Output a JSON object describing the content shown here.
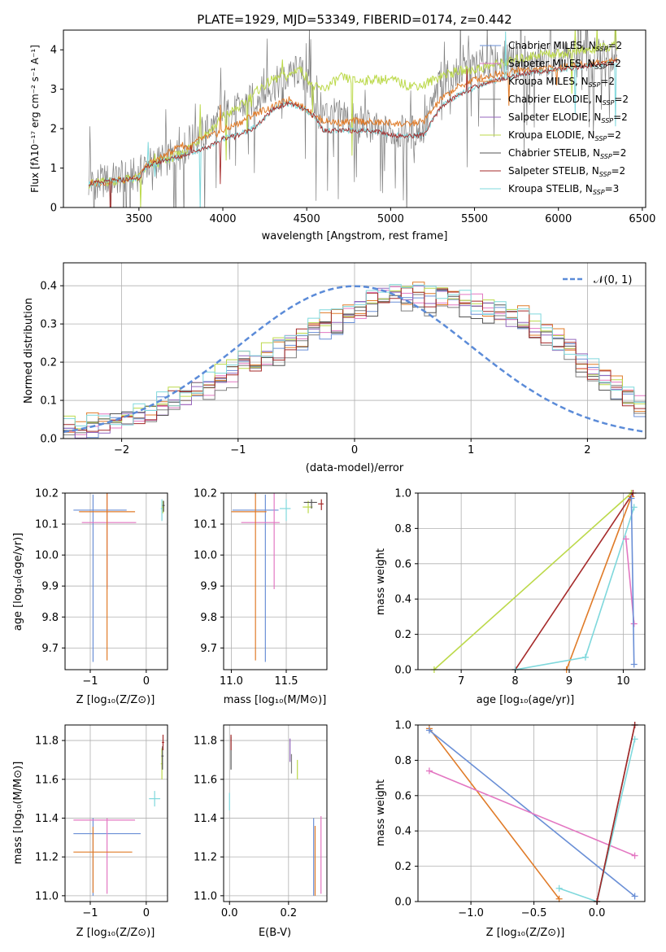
{
  "colors": {
    "chabrier_miles": "#6a8fd6",
    "salpeter_miles": "#e377c2",
    "kroupa_miles": "#e07b28",
    "chabrier_elodie": "#7f7f7f",
    "salpeter_elodie": "#9467bd",
    "kroupa_elodie": "#bcd94a",
    "chabrier_stelib": "#555555",
    "salpeter_stelib": "#a52a2a",
    "kroupa_stelib": "#7fd8dc",
    "grid": "#b0b0b0",
    "normal": "#5b8bd8"
  },
  "chart_data": [
    {
      "type": "line",
      "title": "PLATE=1929, MJD=53349, FIBERID=0174, z=0.442",
      "xlabel": "wavelength [Angstrom, rest frame]",
      "ylabel": "Flux [fλ10⁻¹⁷ erg cm⁻² s⁻¹ A⁻¹]",
      "xlim": [
        3050,
        6520
      ],
      "ylim": [
        0,
        4.5
      ],
      "xticks": [
        "3500",
        "4000",
        "4500",
        "5000",
        "5500",
        "6000",
        "6500"
      ],
      "yticks": [
        "0",
        "1",
        "2",
        "3",
        "4"
      ],
      "legend_position": "top-right",
      "legend": [
        "Chabrier MILES, N_SSP=2",
        "Salpeter MILES, N_SSP=2",
        "Kroupa MILES, N_SSP=2",
        "Chabrier ELODIE, N_SSP=2",
        "Salpeter ELODIE, N_SSP=2",
        "Kroupa ELODIE, N_SSP=2",
        "Chabrier STELIB, N_SSP=2",
        "Salpeter STELIB, N_SSP=2",
        "Kroupa STELIB, N_SSP=3"
      ],
      "data_curve": {
        "x": [
          3200,
          3500,
          3550,
          3650,
          3750,
          3850,
          3950,
          4000,
          4100,
          4200,
          4300,
          4400,
          4450,
          4500,
          4550,
          4600,
          4700,
          4800,
          4900,
          5000,
          5100,
          5200,
          5300,
          5400,
          5500,
          5600,
          5700,
          5800,
          5900,
          6000,
          6100,
          6200,
          6350
        ],
        "y": [
          0.6,
          0.85,
          1.1,
          1.2,
          1.4,
          1.8,
          2.1,
          2.3,
          2.5,
          2.8,
          3.1,
          3.3,
          3.5,
          3.2,
          2.7,
          2.4,
          2.3,
          2.2,
          2.0,
          1.9,
          1.9,
          2.0,
          3.2,
          3.4,
          3.6,
          3.7,
          3.8,
          3.6,
          3.7,
          3.8,
          3.8,
          3.9,
          3.9
        ]
      },
      "model_high": {
        "x": [
          3200,
          3500,
          3550,
          3650,
          3750,
          3850,
          3950,
          4000,
          4100,
          4200,
          4300,
          4400,
          4450,
          4500,
          4550,
          4600,
          4700,
          4800,
          4900,
          5000,
          5100,
          5200,
          5300,
          5400,
          5500,
          5600,
          5700,
          5800,
          5900,
          6000,
          6100,
          6200,
          6350
        ],
        "y": [
          0.6,
          0.75,
          1.05,
          1.2,
          1.35,
          1.7,
          2.05,
          2.3,
          2.55,
          2.95,
          3.25,
          3.35,
          3.55,
          3.3,
          3.05,
          3.0,
          3.3,
          3.2,
          3.25,
          3.25,
          3.1,
          3.1,
          3.35,
          3.45,
          3.5,
          3.6,
          3.7,
          3.8,
          3.9,
          3.9,
          3.95,
          4.0,
          4.1
        ]
      },
      "model_mid": {
        "x": [
          3200,
          3500,
          3550,
          3650,
          3750,
          3850,
          3950,
          4000,
          4100,
          4200,
          4300,
          4400,
          4450,
          4500,
          4550,
          4600,
          4700,
          4800,
          4900,
          5000,
          5100,
          5200,
          5300,
          5400,
          5500,
          5600,
          5700,
          5800,
          5900,
          6000,
          6100,
          6200,
          6350
        ],
        "y": [
          0.6,
          0.75,
          1.05,
          1.2,
          1.3,
          1.45,
          1.6,
          1.75,
          1.85,
          2.05,
          2.5,
          2.65,
          2.55,
          2.45,
          2.3,
          1.95,
          1.95,
          1.95,
          1.95,
          1.85,
          1.8,
          1.85,
          2.55,
          2.85,
          3.05,
          3.2,
          3.3,
          3.4,
          3.45,
          3.5,
          3.55,
          3.6,
          3.7
        ]
      },
      "model_orange": {
        "x": [
          3200,
          3500,
          3550,
          3650,
          3750,
          3800,
          3850,
          3950,
          4000,
          4100,
          4200,
          4300,
          4400,
          4450,
          4500,
          4550,
          4600,
          4700,
          4800,
          4900,
          5000,
          5100,
          5200,
          5300,
          5400,
          5500,
          5600,
          5700,
          5800,
          5900,
          6000,
          6100,
          6200,
          6350
        ],
        "y": [
          0.6,
          0.75,
          1.1,
          1.3,
          1.6,
          1.5,
          1.7,
          1.85,
          1.95,
          2.15,
          2.4,
          2.55,
          2.75,
          2.6,
          2.5,
          2.3,
          2.2,
          2.15,
          2.2,
          2.15,
          2.15,
          2.1,
          2.2,
          2.75,
          3.05,
          3.25,
          3.35,
          3.45,
          3.5,
          3.5,
          3.55,
          3.6,
          3.65,
          3.75
        ]
      }
    },
    {
      "type": "histogram",
      "xlabel": "(data-model)/error",
      "ylabel": "Normed distribution",
      "xlim": [
        -2.5,
        2.5
      ],
      "ylim": [
        0,
        0.46
      ],
      "xticks": [
        "−2",
        "−1",
        "0",
        "1",
        "2"
      ],
      "yticks": [
        "0.0",
        "0.1",
        "0.2",
        "0.3",
        "0.4"
      ],
      "legend_position": "top-right",
      "legend": [
        "𝒩(0, 1)"
      ],
      "bin_edges_start": -2.5,
      "bin_width": 0.1,
      "base_profile": [
        0.02,
        0.025,
        0.03,
        0.035,
        0.045,
        0.05,
        0.06,
        0.075,
        0.09,
        0.1,
        0.11,
        0.13,
        0.14,
        0.16,
        0.17,
        0.19,
        0.2,
        0.22,
        0.23,
        0.25,
        0.26,
        0.28,
        0.3,
        0.31,
        0.33,
        0.34,
        0.36,
        0.37,
        0.38,
        0.37,
        0.38,
        0.36,
        0.37,
        0.36,
        0.35,
        0.35,
        0.34,
        0.33,
        0.32,
        0.31,
        0.29,
        0.28,
        0.25,
        0.23,
        0.2,
        0.18,
        0.15,
        0.13,
        0.11,
        0.09
      ]
    },
    {
      "type": "scatter",
      "panel": "age-vs-Z",
      "xlabel": "Z [log₁₀(Z/Z⊙)]",
      "ylabel": "age  [log₁₀(age/yr)]",
      "xlim": [
        -1.45,
        0.38
      ],
      "ylim": [
        9.63,
        10.2
      ],
      "xticks": [
        "−1",
        "0"
      ],
      "yticks": [
        "9.7",
        "9.8",
        "9.9",
        "10.0",
        "10.1",
        "10.2"
      ],
      "points": [
        {
          "x": -0.95,
          "y": 10.145,
          "xerr": [
            0.35,
            0.6
          ],
          "yerr": [
            0.49,
            0.05
          ],
          "color": "chabrier_miles"
        },
        {
          "x": -0.7,
          "y": 10.105,
          "xerr": [
            0.45,
            0.52
          ],
          "yerr": [
            0.215,
            0.095
          ],
          "color": "salpeter_miles"
        },
        {
          "x": -0.7,
          "y": 10.14,
          "xerr": [
            0.5,
            0.5
          ],
          "yerr": [
            0.48,
            0.06
          ],
          "color": "kroupa_miles"
        },
        {
          "x": 0.28,
          "y": 10.15,
          "xerr": [
            0.02,
            0.02
          ],
          "yerr": [
            0.04,
            0.03
          ],
          "color": "kroupa_stelib"
        },
        {
          "x": 0.3,
          "y": 10.155,
          "xerr": [
            0.02,
            0.02
          ],
          "yerr": [
            0.02,
            0.02
          ],
          "color": "kroupa_elodie"
        },
        {
          "x": 0.31,
          "y": 10.16,
          "xerr": [
            0.02,
            0.02
          ],
          "yerr": [
            0.02,
            0.015
          ],
          "color": "chabrier_stelib"
        }
      ]
    },
    {
      "type": "scatter",
      "panel": "age-vs-mass",
      "xlabel": "mass [log₁₀(M/M⊙)]",
      "ylabel": "",
      "xlim": [
        10.93,
        11.87
      ],
      "ylim": [
        9.63,
        10.2
      ],
      "xticks": [
        "11.0",
        "11.5"
      ],
      "yticks": [
        "9.7",
        "9.8",
        "9.9",
        "10.0",
        "10.1",
        "10.2"
      ],
      "points": [
        {
          "x": 11.31,
          "y": 10.145,
          "xerr": [
            0.3,
            0.12
          ],
          "yerr": [
            0.49,
            0.05
          ],
          "color": "chabrier_miles"
        },
        {
          "x": 11.39,
          "y": 10.105,
          "xerr": [
            0.3,
            0.05
          ],
          "yerr": [
            0.215,
            0.095
          ],
          "color": "salpeter_miles"
        },
        {
          "x": 11.22,
          "y": 10.14,
          "xerr": [
            0.22,
            0.1
          ],
          "yerr": [
            0.48,
            0.06
          ],
          "color": "kroupa_miles"
        },
        {
          "x": 11.5,
          "y": 10.15,
          "xerr": [
            0.06,
            0.04
          ],
          "yerr": [
            0.04,
            0.03
          ],
          "color": "kroupa_stelib"
        },
        {
          "x": 11.7,
          "y": 10.155,
          "xerr": [
            0.05,
            0.04
          ],
          "yerr": [
            0.02,
            0.02
          ],
          "color": "kroupa_elodie"
        },
        {
          "x": 11.73,
          "y": 10.17,
          "xerr": [
            0.07,
            0.05
          ],
          "yerr": [
            0.02,
            0.01
          ],
          "color": "chabrier_stelib"
        },
        {
          "x": 11.82,
          "y": 10.165,
          "xerr": [
            0.03,
            0.02
          ],
          "yerr": [
            0.02,
            0.015
          ],
          "color": "salpeter_stelib"
        }
      ]
    },
    {
      "type": "line",
      "panel": "weight-vs-age",
      "xlabel": "age  [log₁₀(age/yr)]",
      "ylabel": "mass weight",
      "xlim": [
        6.2,
        10.4
      ],
      "ylim": [
        0,
        1.0
      ],
      "xticks": [
        "7",
        "8",
        "9",
        "10"
      ],
      "yticks": [
        "0.0",
        "0.2",
        "0.4",
        "0.6",
        "0.8",
        "1.0"
      ],
      "series": [
        {
          "color": "kroupa_elodie",
          "x": [
            6.5,
            10.15
          ],
          "y": [
            0.0,
            1.0
          ]
        },
        {
          "color": "kroupa_miles",
          "x": [
            8.95,
            10.15
          ],
          "y": [
            0.0,
            0.98
          ]
        },
        {
          "color": "salpeter_stelib",
          "x": [
            8.0,
            10.18
          ],
          "y": [
            0.0,
            1.0
          ]
        },
        {
          "color": "kroupa_stelib",
          "x": [
            8.0,
            9.3,
            10.2
          ],
          "y": [
            0.0,
            0.07,
            0.92
          ]
        },
        {
          "color": "salpeter_miles",
          "x": [
            10.05,
            10.2
          ],
          "y": [
            0.74,
            0.26
          ]
        },
        {
          "color": "chabrier_miles",
          "x": [
            10.15,
            10.2
          ],
          "y": [
            0.97,
            0.03
          ]
        }
      ]
    },
    {
      "type": "scatter",
      "panel": "mass-vs-Z",
      "xlabel": "Z [log₁₀(Z/Z⊙)]",
      "ylabel": "mass [log₁₀(M/M⊙)]",
      "xlim": [
        -1.45,
        0.38
      ],
      "ylim": [
        10.97,
        11.88
      ],
      "xticks": [
        "−1",
        "0"
      ],
      "yticks": [
        "11.0",
        "11.2",
        "11.4",
        "11.6",
        "11.8"
      ],
      "points": [
        {
          "x": -0.95,
          "y": 11.32,
          "xerr": [
            0.35,
            0.85
          ],
          "yerr": [
            0.32,
            0.08
          ],
          "color": "chabrier_miles"
        },
        {
          "x": -0.7,
          "y": 11.39,
          "xerr": [
            0.6,
            0.5
          ],
          "yerr": [
            0.38,
            0.01
          ],
          "color": "salpeter_miles"
        },
        {
          "x": -0.95,
          "y": 11.225,
          "xerr": [
            0.35,
            0.7
          ],
          "yerr": [
            0.21,
            0.13
          ],
          "color": "kroupa_miles"
        },
        {
          "x": 0.15,
          "y": 11.5,
          "xerr": [
            0.1,
            0.1
          ],
          "yerr": [
            0.04,
            0.04
          ],
          "color": "kroupa_stelib"
        },
        {
          "x": 0.28,
          "y": 11.68,
          "xerr": [
            0.02,
            0.02
          ],
          "yerr": [
            0.08,
            0.08
          ],
          "color": "kroupa_elodie"
        },
        {
          "x": 0.29,
          "y": 11.72,
          "xerr": [
            0.02,
            0.02
          ],
          "yerr": [
            0.07,
            0.05
          ],
          "color": "chabrier_stelib"
        },
        {
          "x": 0.3,
          "y": 11.79,
          "xerr": [
            0.02,
            0.02
          ],
          "yerr": [
            0.04,
            0.04
          ],
          "color": "salpeter_stelib"
        }
      ]
    },
    {
      "type": "scatter",
      "panel": "mass-vs-EBV",
      "xlabel": "E(B-V)",
      "ylabel": "",
      "xlim": [
        -0.02,
        0.33
      ],
      "ylim": [
        10.97,
        11.88
      ],
      "xticks": [
        "0.0",
        "0.2"
      ],
      "yticks": [
        "11.0",
        "11.2",
        "11.4",
        "11.6",
        "11.8"
      ],
      "points": [
        {
          "x": 0.0,
          "y": 11.48,
          "yerr": [
            0.04,
            0.05
          ],
          "color": "kroupa_stelib"
        },
        {
          "x": 0.005,
          "y": 11.72,
          "yerr": [
            0.07,
            0.1
          ],
          "color": "chabrier_stelib"
        },
        {
          "x": 0.005,
          "y": 11.78,
          "yerr": [
            0.03,
            0.05
          ],
          "color": "salpeter_stelib"
        },
        {
          "x": 0.205,
          "y": 11.75,
          "yerr": [
            0.06,
            0.06
          ],
          "color": "salpeter_elodie"
        },
        {
          "x": 0.21,
          "y": 11.68,
          "yerr": [
            0.05,
            0.05
          ],
          "color": "chabrier_elodie"
        },
        {
          "x": 0.23,
          "y": 11.65,
          "yerr": [
            0.05,
            0.05
          ],
          "color": "kroupa_elodie"
        },
        {
          "x": 0.285,
          "y": 11.2,
          "yerr": [
            0.2,
            0.2
          ],
          "color": "chabrier_miles"
        },
        {
          "x": 0.29,
          "y": 11.18,
          "yerr": [
            0.18,
            0.18
          ],
          "color": "kroupa_miles"
        },
        {
          "x": 0.31,
          "y": 11.21,
          "yerr": [
            0.2,
            0.2
          ],
          "color": "salpeter_miles"
        }
      ]
    },
    {
      "type": "line",
      "panel": "weight-vs-Z",
      "xlabel": "Z [log₁₀(Z/Z⊙)]",
      "ylabel": "mass weight",
      "xlim": [
        -1.42,
        0.38
      ],
      "ylim": [
        0,
        1.0
      ],
      "xticks": [
        "−1.0",
        "−0.5",
        "0.0"
      ],
      "yticks": [
        "0.0",
        "0.2",
        "0.4",
        "0.6",
        "0.8",
        "1.0"
      ],
      "series": [
        {
          "color": "kroupa_miles",
          "x": [
            -1.33,
            -0.3
          ],
          "y": [
            0.98,
            0.015
          ]
        },
        {
          "color": "chabrier_miles",
          "x": [
            -1.33,
            0.3
          ],
          "y": [
            0.97,
            0.03
          ]
        },
        {
          "color": "salpeter_miles",
          "x": [
            -1.33,
            0.3
          ],
          "y": [
            0.74,
            0.26
          ]
        },
        {
          "color": "kroupa_stelib",
          "x": [
            -0.3,
            0.0,
            0.3
          ],
          "y": [
            0.075,
            0.0,
            0.92
          ]
        },
        {
          "color": "chabrier_stelib",
          "x": [
            0.0,
            0.3
          ],
          "y": [
            0.0,
            1.0
          ]
        },
        {
          "color": "salpeter_stelib",
          "x": [
            0.0,
            0.3
          ],
          "y": [
            0.0,
            1.0
          ]
        }
      ]
    }
  ]
}
